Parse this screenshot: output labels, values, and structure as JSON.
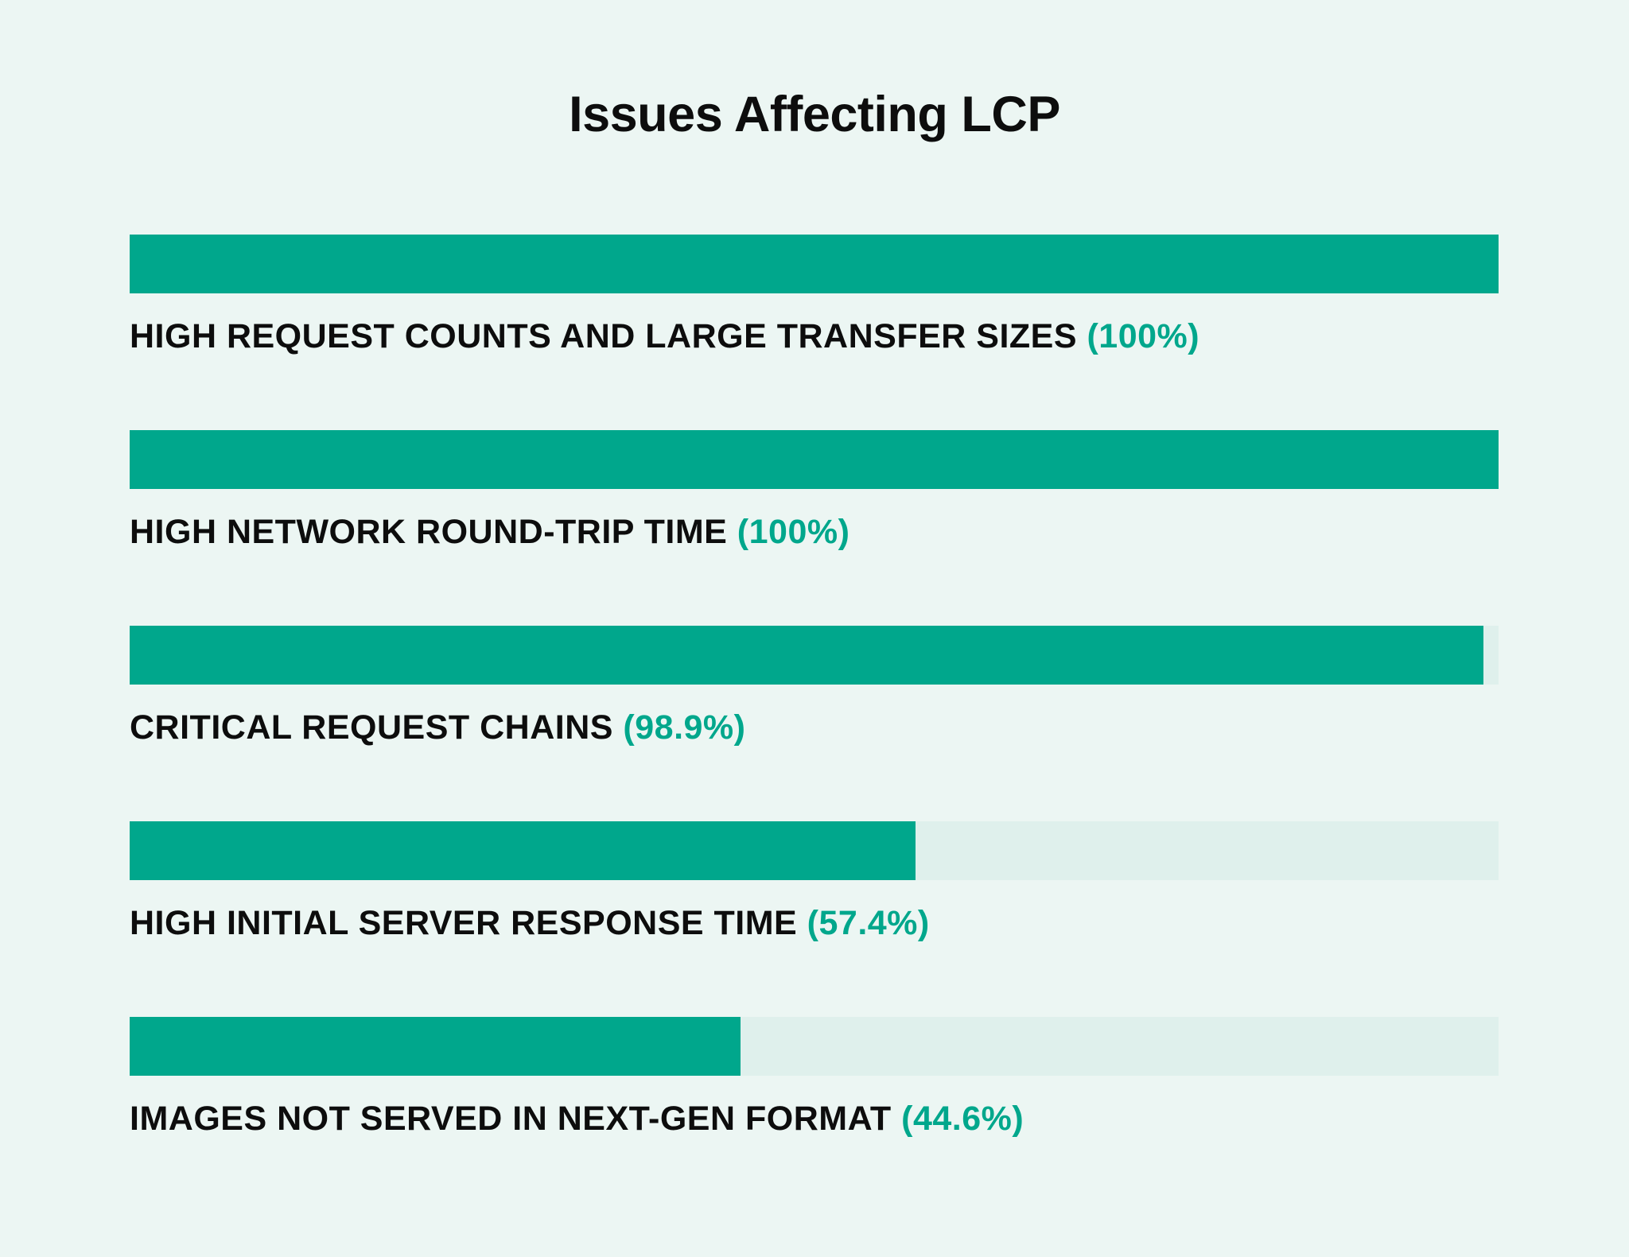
{
  "title": "Issues Affecting LCP",
  "colors": {
    "background": "#ecf6f3",
    "bar_fill": "#00a78c",
    "bar_track": "#dff0ec",
    "label_text": "#0d0d0d",
    "value_text": "#00a78c"
  },
  "chart_data": {
    "type": "bar",
    "orientation": "horizontal",
    "title": "Issues Affecting LCP",
    "categories": [
      "HIGH REQUEST COUNTS AND LARGE TRANSFER SIZES",
      "HIGH NETWORK ROUND-TRIP TIME",
      "CRITICAL REQUEST CHAINS",
      "HIGH INITIAL SERVER RESPONSE TIME",
      "IMAGES NOT SERVED IN NEXT-GEN FORMAT"
    ],
    "values": [
      100,
      100,
      98.9,
      57.4,
      44.6
    ],
    "value_labels": [
      "(100%)",
      "(100%)",
      "(98.9%)",
      "(57.4%)",
      "(44.6%)"
    ],
    "xlabel": "",
    "ylabel": "",
    "xlim": [
      0,
      100
    ],
    "grid": false,
    "legend": false
  }
}
